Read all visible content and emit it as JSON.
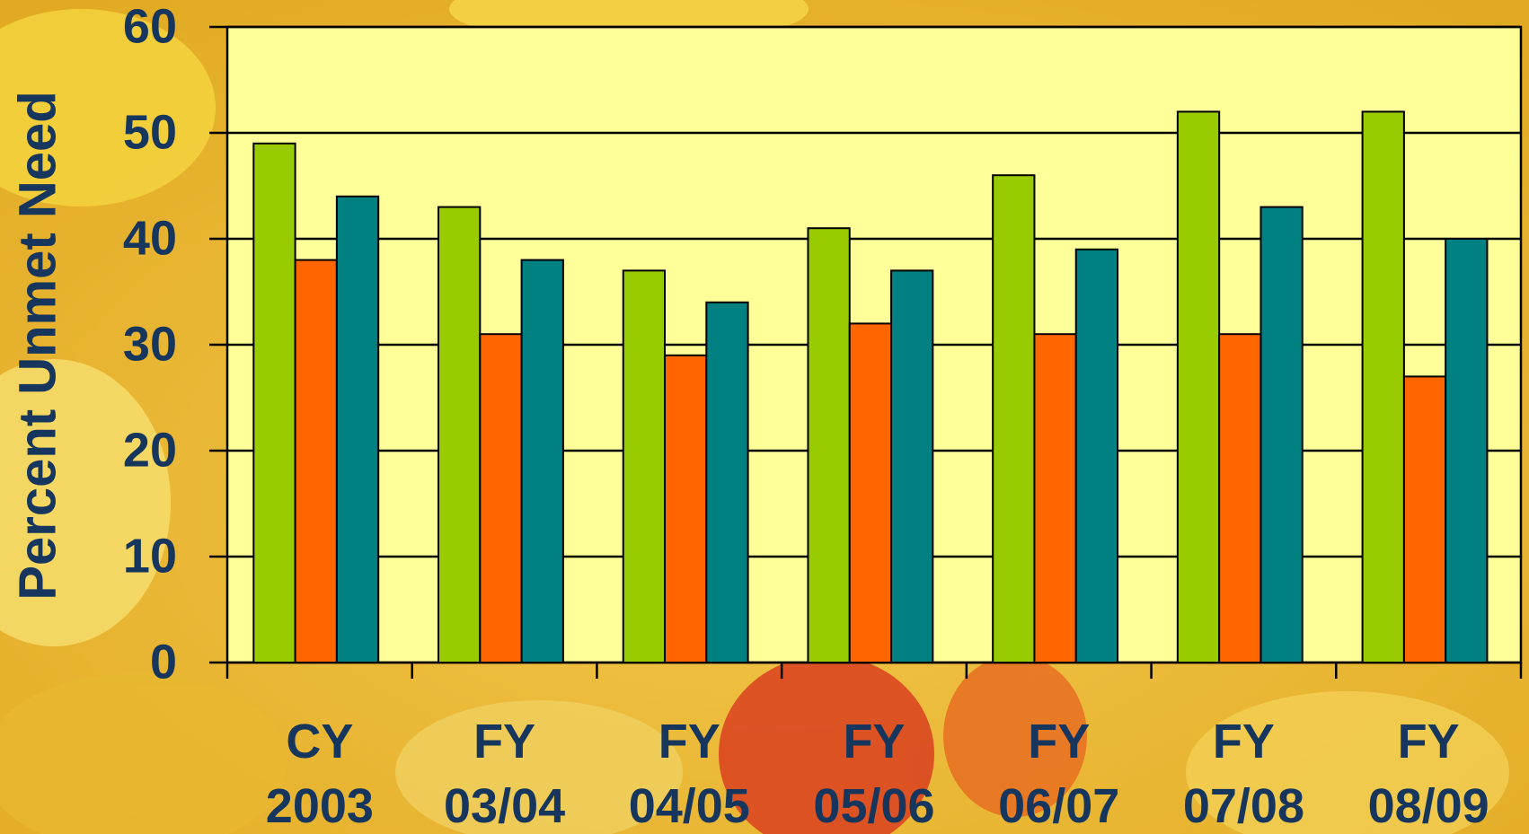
{
  "chart_data": {
    "type": "bar",
    "y_label": "Percent Unmet Need",
    "categories": [
      "CY 2003",
      "FY 03/04",
      "FY 04/05",
      "FY 05/06",
      "FY 06/07",
      "FY 07/08",
      "FY 08/09"
    ],
    "series": [
      {
        "color": "#99cc00",
        "values": [
          49,
          43,
          37,
          41,
          46,
          52,
          52
        ]
      },
      {
        "color": "#ff6600",
        "values": [
          38,
          31,
          29,
          32,
          31,
          31,
          27
        ]
      },
      {
        "color": "#008080",
        "values": [
          44,
          38,
          34,
          37,
          39,
          43,
          40
        ]
      }
    ],
    "ylim": [
      0,
      60
    ],
    "yticks": [
      0,
      10,
      20,
      30,
      40,
      50,
      60
    ],
    "grid": true
  }
}
